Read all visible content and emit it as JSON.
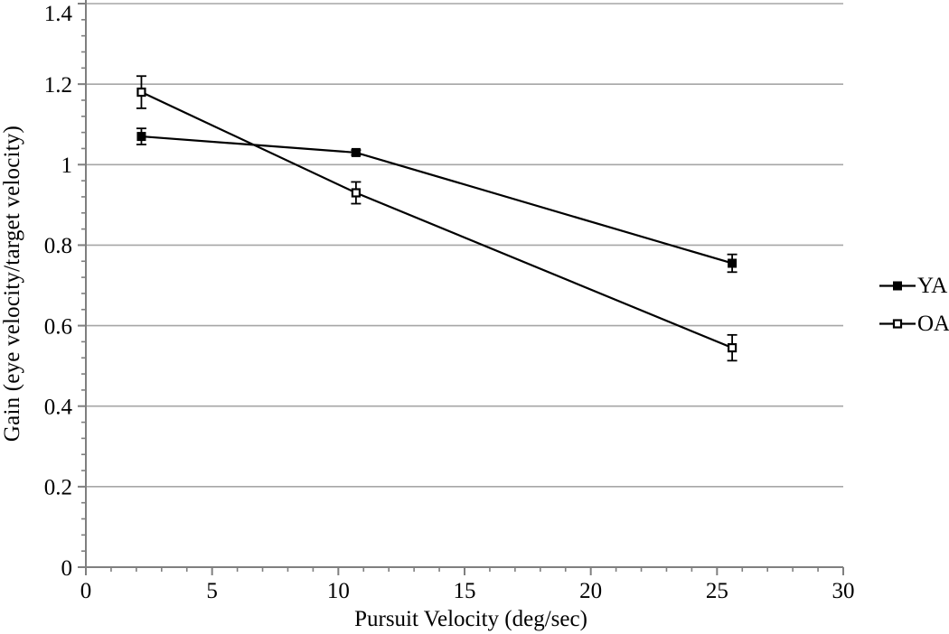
{
  "chart_data": {
    "type": "line",
    "title": "",
    "xlabel": "Pursuit Velocity (deg/sec)",
    "ylabel": "Gain (eye velocity/target velocity)",
    "xlim": [
      0,
      30
    ],
    "ylim": [
      0,
      1.4
    ],
    "x_major_ticks": [
      0,
      5,
      10,
      15,
      20,
      25,
      30
    ],
    "x_tick_labels": [
      "0",
      "5",
      "10",
      "15",
      "20",
      "25",
      "30"
    ],
    "x_minor_step": 1,
    "y_major_ticks": [
      0,
      0.2,
      0.4,
      0.6,
      0.8,
      1,
      1.2,
      1.4
    ],
    "y_tick_labels": [
      "0",
      "0.2",
      "0.4",
      "0.6",
      "0.8",
      "1",
      "1.2",
      "1.4"
    ],
    "y_minor_step": 0.04,
    "grid": "horizontal-major-only",
    "legend_position": "right-outside-middle",
    "colors": {
      "series": "#000000",
      "gridline": "#a6a6a6",
      "axis": "#7f7f7f",
      "text": "#000000",
      "background": "#ffffff"
    },
    "series": [
      {
        "name": "YA",
        "marker": "filled-square",
        "x": [
          2.2,
          10.7,
          25.6
        ],
        "y": [
          1.07,
          1.03,
          0.755
        ],
        "yerr": [
          0.02,
          0.006,
          0.022
        ]
      },
      {
        "name": "OA",
        "marker": "open-square",
        "x": [
          2.2,
          10.7,
          25.6
        ],
        "y": [
          1.18,
          0.93,
          0.545
        ],
        "yerr": [
          0.04,
          0.027,
          0.032
        ]
      }
    ]
  }
}
